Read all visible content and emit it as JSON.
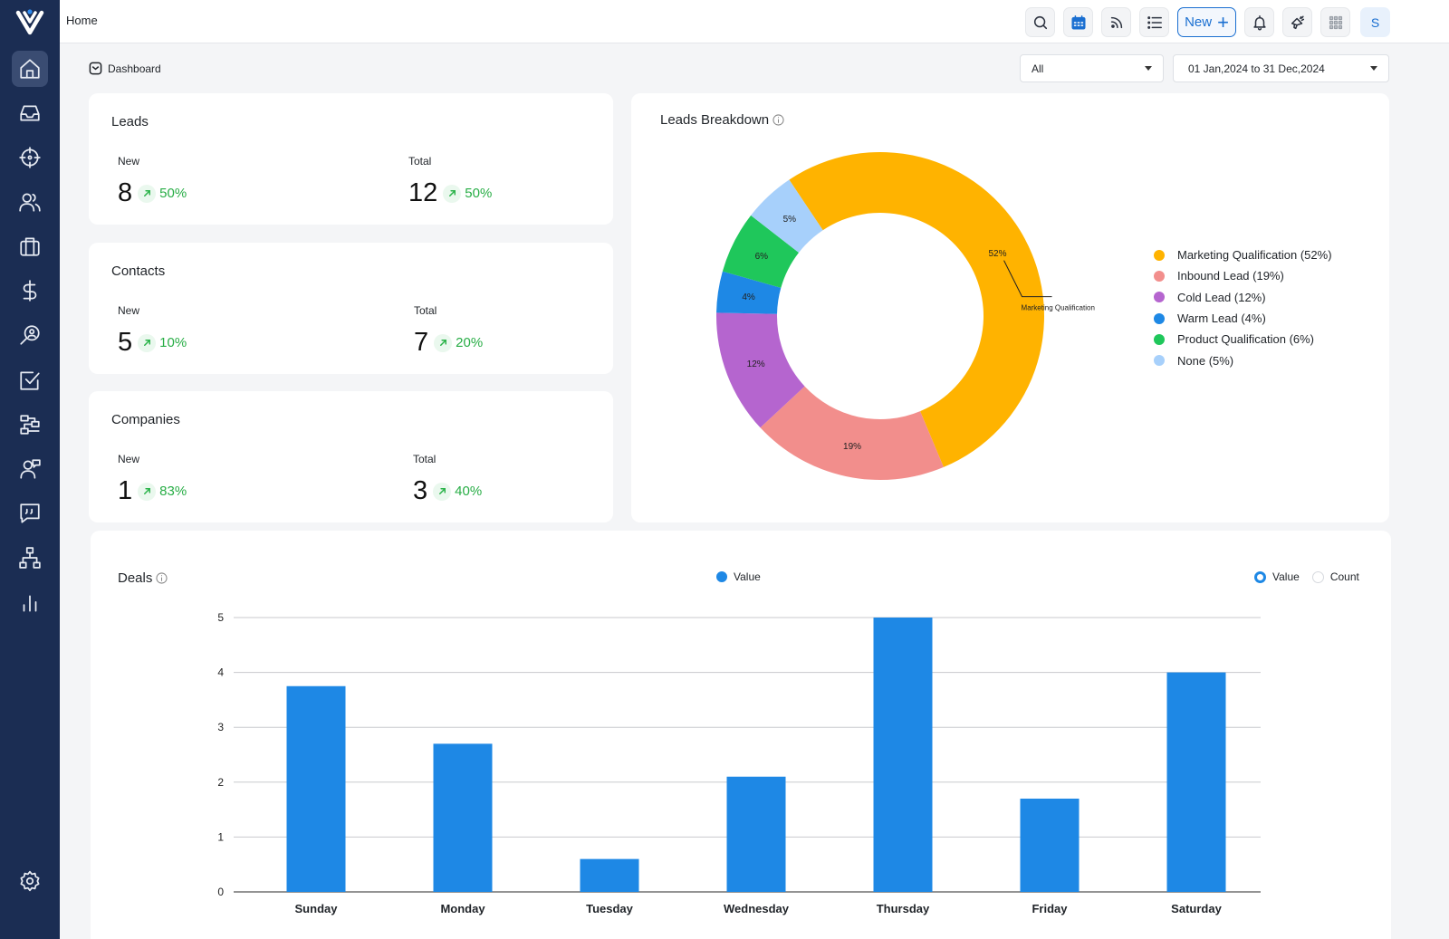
{
  "header": {
    "title": "Home",
    "new_label": "New",
    "avatar_initial": "S"
  },
  "breadcrumb": {
    "label": "Dashboard"
  },
  "filters": {
    "type_value": "All",
    "date_range": "01 Jan,2024 to 31 Dec,2024"
  },
  "stats": [
    {
      "title": "Leads",
      "new_label": "New",
      "new_value": "8",
      "new_pct": "50%",
      "total_label": "Total",
      "total_value": "12",
      "total_pct": "50%"
    },
    {
      "title": "Contacts",
      "new_label": "New",
      "new_value": "5",
      "new_pct": "10%",
      "total_label": "Total",
      "total_value": "7",
      "total_pct": "20%"
    },
    {
      "title": "Companies",
      "new_label": "New",
      "new_value": "1",
      "new_pct": "83%",
      "total_label": "Total",
      "total_value": "3",
      "total_pct": "40%"
    }
  ],
  "breakdown": {
    "title": "Leads Breakdown",
    "callout": "Marketing Qualification",
    "legend": [
      {
        "label": "Marketing Qualification (52%)",
        "color": "#ffb300"
      },
      {
        "label": "Inbound Lead (19%)",
        "color": "#f28e8c"
      },
      {
        "label": "Cold Lead (12%)",
        "color": "#b565cf"
      },
      {
        "label": "Warm Lead (4%)",
        "color": "#1e88e5"
      },
      {
        "label": "Product Qualification (6%)",
        "color": "#1fc75b"
      },
      {
        "label": "None (5%)",
        "color": "#a7d0fb"
      }
    ]
  },
  "deals": {
    "title": "Deals",
    "legend_label": "Value",
    "toggle": [
      {
        "label": "Value",
        "selected": true
      },
      {
        "label": "Count",
        "selected": false
      }
    ]
  },
  "chart_data": [
    {
      "type": "pie",
      "title": "Leads Breakdown",
      "donut": true,
      "slices": [
        {
          "name": "Marketing Qualification",
          "value": 52,
          "label": "52%",
          "color": "#ffb300"
        },
        {
          "name": "Inbound Lead",
          "value": 19,
          "label": "19%",
          "color": "#f28e8c"
        },
        {
          "name": "Cold Lead",
          "value": 12,
          "label": "12%",
          "color": "#b565cf"
        },
        {
          "name": "Warm Lead",
          "value": 4,
          "label": "4%",
          "color": "#1e88e5"
        },
        {
          "name": "Product Qualification",
          "value": 6,
          "label": "6%",
          "color": "#1fc75b"
        },
        {
          "name": "None",
          "value": 5,
          "label": "5%",
          "color": "#a7d0fb"
        }
      ],
      "legend": "right"
    },
    {
      "type": "bar",
      "title": "Deals",
      "categories": [
        "Sunday",
        "Monday",
        "Tuesday",
        "Wednesday",
        "Thursday",
        "Friday",
        "Saturday"
      ],
      "series": [
        {
          "name": "Value",
          "values": [
            3.75,
            2.7,
            0.6,
            2.1,
            5,
            1.7,
            4
          ],
          "color": "#1e88e5"
        }
      ],
      "ylim": [
        0,
        5
      ],
      "yticks": [
        "0",
        "1",
        "2",
        "3",
        "4",
        "5"
      ],
      "grid": true,
      "legend": "top-center"
    }
  ]
}
